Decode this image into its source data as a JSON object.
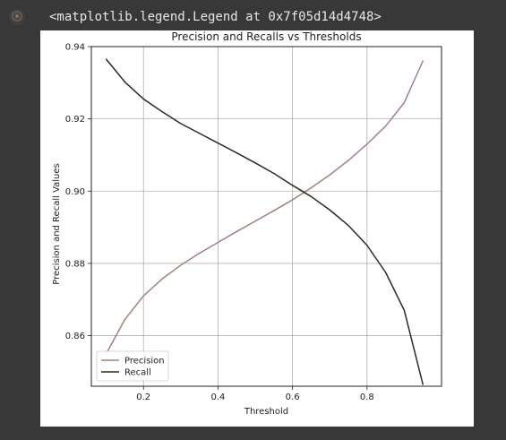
{
  "output": {
    "repr_text": "<matplotlib.legend.Legend at 0x7f05d14d4748>"
  },
  "chart_data": {
    "type": "line",
    "title": "Precision and Recalls vs Thresholds",
    "xlabel": "Threshold",
    "ylabel": "Precision and Recall Values",
    "xlim": [
      0.06,
      1.0
    ],
    "ylim": [
      0.846,
      0.94
    ],
    "xticks": [
      0.2,
      0.4,
      0.6,
      0.8
    ],
    "xtick_labels": [
      "0.2",
      "0.4",
      "0.6",
      "0.8"
    ],
    "yticks": [
      0.86,
      0.88,
      0.9,
      0.92,
      0.94
    ],
    "ytick_labels": [
      "0.86",
      "0.88",
      "0.90",
      "0.92",
      "0.94"
    ],
    "grid": true,
    "legend_position": "lower-left",
    "x": [
      0.1,
      0.15,
      0.2,
      0.25,
      0.3,
      0.35,
      0.4,
      0.45,
      0.5,
      0.55,
      0.6,
      0.65,
      0.7,
      0.75,
      0.8,
      0.85,
      0.9,
      0.95
    ],
    "series": [
      {
        "name": "Precision",
        "color": "#a2817c",
        "values": [
          0.855,
          0.8645,
          0.871,
          0.8757,
          0.8795,
          0.8828,
          0.8858,
          0.8888,
          0.8917,
          0.8946,
          0.8976,
          0.9009,
          0.9045,
          0.9085,
          0.913,
          0.918,
          0.9245,
          0.936
        ]
      },
      {
        "name": "Recall",
        "color": "#272c1c",
        "values": [
          0.9365,
          0.9302,
          0.9255,
          0.922,
          0.9187,
          0.916,
          0.9133,
          0.9106,
          0.9078,
          0.9049,
          0.9016,
          0.8985,
          0.8948,
          0.8905,
          0.885,
          0.8775,
          0.867,
          0.8465
        ]
      }
    ]
  }
}
